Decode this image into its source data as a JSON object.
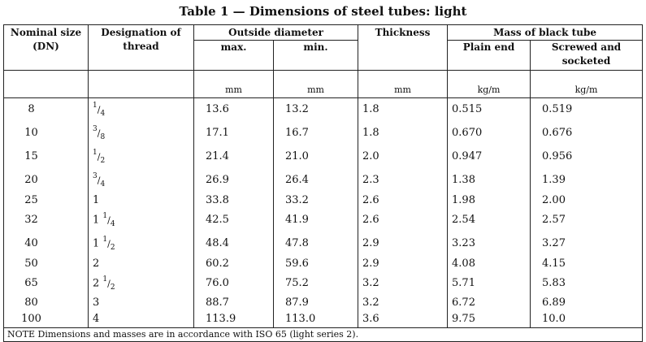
{
  "title": "Table 1 — Dimensions of steel tubes: light",
  "headers": {
    "nominal_size": "Nominal size",
    "nominal_dn": "(DN)",
    "designation": "Designation of",
    "designation_2": "thread",
    "outside_diameter": "Outside diameter",
    "od_max": "max.",
    "od_min": "min.",
    "thickness": "Thickness",
    "mass": "Mass of black tube",
    "plain_end": "Plain end",
    "screwed": "Screwed and",
    "screwed_2": "socketed"
  },
  "units": {
    "od_max": "mm",
    "od_min": "mm",
    "thickness": "mm",
    "plain_end": "kg/m",
    "screwed": "kg/m"
  },
  "rows": [
    {
      "dn": "8",
      "thread_whole": "",
      "thread_num": "1",
      "thread_den": "4",
      "od_max": "13.6",
      "od_min": "13.2",
      "thickness": "1.8",
      "plain": "0.515",
      "screwed": "0.519"
    },
    {
      "dn": "10",
      "thread_whole": "",
      "thread_num": "3",
      "thread_den": "8",
      "od_max": "17.1",
      "od_min": "16.7",
      "thickness": "1.8",
      "plain": "0.670",
      "screwed": "0.676"
    },
    {
      "dn": "15",
      "thread_whole": "",
      "thread_num": "1",
      "thread_den": "2",
      "od_max": "21.4",
      "od_min": "21.0",
      "thickness": "2.0",
      "plain": "0.947",
      "screwed": "0.956"
    },
    {
      "dn": "20",
      "thread_whole": "",
      "thread_num": "3",
      "thread_den": "4",
      "od_max": "26.9",
      "od_min": "26.4",
      "thickness": "2.3",
      "plain": "1.38",
      "screwed": "1.39"
    },
    {
      "dn": "25",
      "thread_whole": "1",
      "thread_num": "",
      "thread_den": "",
      "od_max": "33.8",
      "od_min": "33.2",
      "thickness": "2.6",
      "plain": "1.98",
      "screwed": "2.00"
    },
    {
      "dn": "32",
      "thread_whole": "1",
      "thread_num": "1",
      "thread_den": "4",
      "od_max": "42.5",
      "od_min": "41.9",
      "thickness": "2.6",
      "plain": "2.54",
      "screwed": "2.57"
    },
    {
      "dn": "40",
      "thread_whole": "1",
      "thread_num": "1",
      "thread_den": "2",
      "od_max": "48.4",
      "od_min": "47.8",
      "thickness": "2.9",
      "plain": "3.23",
      "screwed": "3.27"
    },
    {
      "dn": "50",
      "thread_whole": "2",
      "thread_num": "",
      "thread_den": "",
      "od_max": "60.2",
      "od_min": "59.6",
      "thickness": "2.9",
      "plain": "4.08",
      "screwed": "4.15"
    },
    {
      "dn": "65",
      "thread_whole": "2",
      "thread_num": "1",
      "thread_den": "2",
      "od_max": "76.0",
      "od_min": "75.2",
      "thickness": "3.2",
      "plain": "5.71",
      "screwed": "5.83"
    },
    {
      "dn": "80",
      "thread_whole": "3",
      "thread_num": "",
      "thread_den": "",
      "od_max": "88.7",
      "od_min": "87.9",
      "thickness": "3.2",
      "plain": "6.72",
      "screwed": "6.89"
    },
    {
      "dn": "100",
      "thread_whole": "4",
      "thread_num": "",
      "thread_den": "",
      "od_max": "113.9",
      "od_min": "113.0",
      "thickness": "3.6",
      "plain": "9.75",
      "screwed": "10.0"
    }
  ],
  "note": "NOTE    Dimensions and masses are in accordance with ISO 65 (light series 2)."
}
